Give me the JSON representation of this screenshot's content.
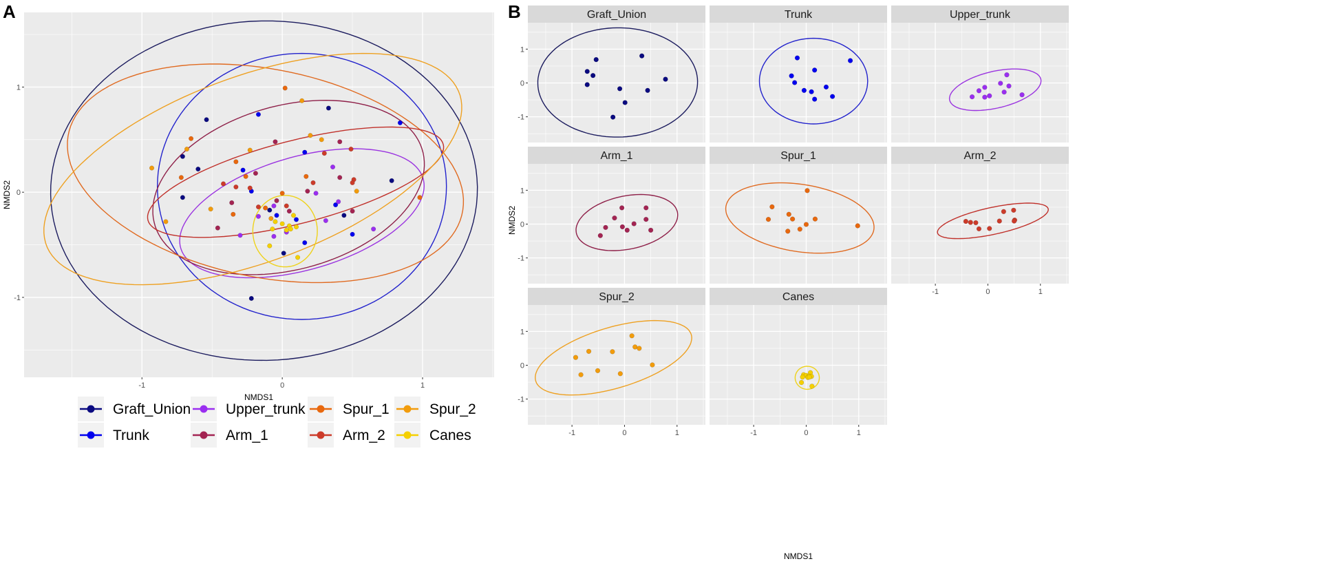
{
  "panel_labels": {
    "a": "A",
    "b": "B"
  },
  "chart_data": {
    "type": "scatter",
    "xlabel": "NMDS1",
    "ylabel": "NMDS2",
    "xticks": [
      -1,
      0,
      1
    ],
    "yticks": [
      -1,
      0,
      1
    ],
    "tick_labels": {
      "-1": "-1",
      "0": "0",
      "1": "1"
    },
    "panel_a": {
      "xlim": [
        -1.84,
        1.51
      ],
      "ylim": [
        -1.76,
        1.71
      ],
      "grid": true,
      "legend": "bottom"
    },
    "panel_b": {
      "xlim": [
        -1.84,
        1.54
      ],
      "ylim": [
        -1.76,
        1.78
      ],
      "grid": true,
      "facet_order": [
        "Graft_Union",
        "Trunk",
        "Upper_trunk",
        "Arm_1",
        "Spur_1",
        "Arm_2",
        "Spur_2",
        "Canes"
      ]
    },
    "groups": [
      {
        "name": "Graft_Union",
        "color": "#0a0a80",
        "ellipse_color": "#1b1b5e",
        "ellipse": {
          "cx": -0.13,
          "cy": 0.015,
          "rx": 1.52,
          "ry": 1.615,
          "angle": -5
        },
        "points": [
          [
            -0.54,
            0.69
          ],
          [
            -0.71,
            0.34
          ],
          [
            -0.6,
            0.22
          ],
          [
            -0.71,
            -0.05
          ],
          [
            0.33,
            0.8
          ],
          [
            0.78,
            0.11
          ],
          [
            -0.09,
            -0.17
          ],
          [
            0.44,
            -0.22
          ],
          [
            0.01,
            -0.58
          ],
          [
            -0.22,
            -1.01
          ]
        ]
      },
      {
        "name": "Trunk",
        "color": "#0000ee",
        "ellipse_color": "#2222cc",
        "ellipse": {
          "cx": 0.14,
          "cy": 0.055,
          "rx": 1.03,
          "ry": 1.265,
          "angle": 0
        },
        "points": [
          [
            -0.17,
            0.74
          ],
          [
            0.84,
            0.66
          ],
          [
            0.16,
            0.38
          ],
          [
            -0.28,
            0.21
          ],
          [
            -0.22,
            0.01
          ],
          [
            0.38,
            -0.12
          ],
          [
            -0.04,
            -0.22
          ],
          [
            0.1,
            -0.26
          ],
          [
            0.5,
            -0.4
          ],
          [
            0.16,
            -0.48
          ]
        ]
      },
      {
        "name": "Upper_trunk",
        "color": "#9a2ef0",
        "ellipse_color": "#9a33e0",
        "ellipse": {
          "cx": 0.14,
          "cy": -0.2,
          "rx": 0.93,
          "ry": 0.52,
          "angle": 25
        },
        "points": [
          [
            0.36,
            0.24
          ],
          [
            0.24,
            -0.01
          ],
          [
            0.4,
            -0.09
          ],
          [
            -0.06,
            -0.13
          ],
          [
            -0.17,
            -0.23
          ],
          [
            0.31,
            -0.27
          ],
          [
            -0.3,
            -0.41
          ],
          [
            -0.06,
            -0.42
          ],
          [
            0.03,
            -0.38
          ],
          [
            0.65,
            -0.35
          ]
        ]
      },
      {
        "name": "Arm_1",
        "color": "#a32452",
        "ellipse_color": "#8e1f48",
        "ellipse": {
          "cx": 0.045,
          "cy": 0.045,
          "rx": 1.03,
          "ry": 0.75,
          "angle": 30
        },
        "points": [
          [
            -0.05,
            0.48
          ],
          [
            0.41,
            0.48
          ],
          [
            -0.19,
            0.18
          ],
          [
            0.41,
            0.14
          ],
          [
            0.18,
            0.01
          ],
          [
            -0.36,
            -0.1
          ],
          [
            -0.04,
            -0.08
          ],
          [
            0.05,
            -0.18
          ],
          [
            0.5,
            -0.18
          ],
          [
            -0.46,
            -0.34
          ]
        ]
      },
      {
        "name": "Spur_1",
        "color": "#e8680e",
        "ellipse_color": "#e06a20",
        "ellipse": {
          "cx": -0.12,
          "cy": 0.18,
          "rx": 1.46,
          "ry": 0.97,
          "angle": -20
        },
        "points": [
          [
            0.02,
            0.99
          ],
          [
            -0.65,
            0.51
          ],
          [
            -0.33,
            0.29
          ],
          [
            -0.72,
            0.14
          ],
          [
            -0.26,
            0.15
          ],
          [
            0.17,
            0.15
          ],
          [
            0.0,
            -0.01
          ],
          [
            0.98,
            -0.05
          ],
          [
            -0.12,
            -0.15
          ],
          [
            -0.35,
            -0.21
          ]
        ]
      },
      {
        "name": "Arm_2",
        "color": "#cc3b2a",
        "ellipse_color": "#c0302a",
        "ellipse": {
          "cx": 0.095,
          "cy": 0.095,
          "rx": 1.114,
          "ry": 0.384,
          "angle": 20
        },
        "points": [
          [
            -0.42,
            0.08
          ],
          [
            -0.33,
            0.05
          ],
          [
            -0.23,
            0.04
          ],
          [
            -0.17,
            -0.14
          ],
          [
            0.03,
            -0.13
          ],
          [
            0.22,
            0.09
          ],
          [
            0.3,
            0.37
          ],
          [
            0.49,
            0.41
          ],
          [
            0.51,
            0.12
          ],
          [
            0.5,
            0.09
          ]
        ]
      },
      {
        "name": "Spur_2",
        "color": "#f29c0c",
        "ellipse_color": "#eea020",
        "ellipse": {
          "cx": -0.21,
          "cy": 0.22,
          "rx": 1.65,
          "ry": 0.84,
          "angle": 30
        },
        "points": [
          [
            0.14,
            0.87
          ],
          [
            0.2,
            0.54
          ],
          [
            0.28,
            0.5
          ],
          [
            -0.68,
            0.41
          ],
          [
            -0.23,
            0.4
          ],
          [
            -0.93,
            0.23
          ],
          [
            0.53,
            0.01
          ],
          [
            -0.51,
            -0.16
          ],
          [
            -0.08,
            -0.25
          ],
          [
            -0.83,
            -0.28
          ]
        ]
      },
      {
        "name": "Canes",
        "color": "#f5d000",
        "ellipse_color": "#eed21a",
        "ellipse": {
          "cx": 0.02,
          "cy": -0.37,
          "rx": 0.23,
          "ry": 0.34,
          "angle": 0
        },
        "points": [
          [
            0.08,
            -0.22
          ],
          [
            -0.05,
            -0.28
          ],
          [
            0.0,
            -0.3
          ],
          [
            0.05,
            -0.32
          ],
          [
            0.1,
            -0.33
          ],
          [
            -0.07,
            -0.35
          ],
          [
            0.03,
            -0.36
          ],
          [
            0.06,
            -0.35
          ],
          [
            -0.09,
            -0.51
          ],
          [
            0.11,
            -0.62
          ]
        ]
      }
    ]
  }
}
